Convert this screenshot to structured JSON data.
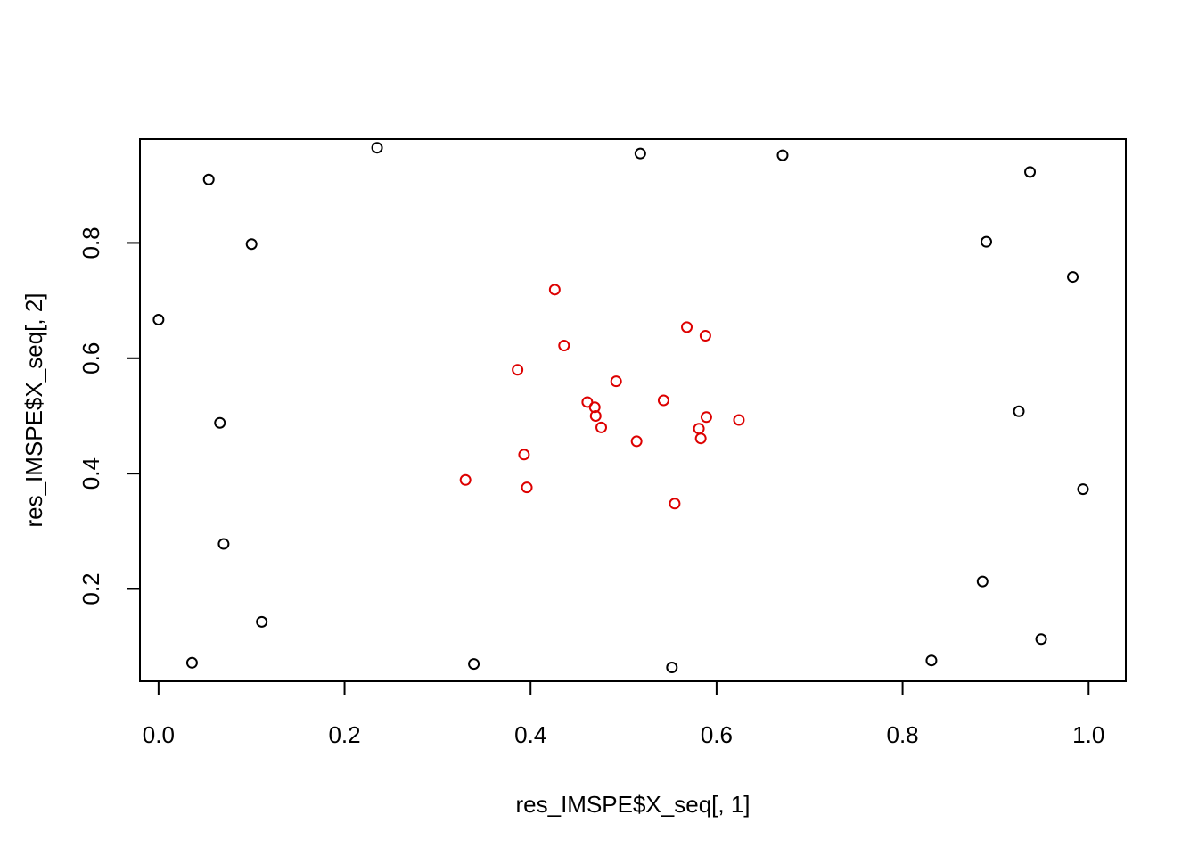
{
  "chart_data": {
    "type": "scatter",
    "title": "",
    "xlabel": "res_IMSPE$X_seq[, 1]",
    "ylabel": "res_IMSPE$X_seq[, 2]",
    "xlim": [
      -0.02,
      1.04
    ],
    "ylim": [
      0.04,
      0.98
    ],
    "xticks": [
      0.0,
      0.2,
      0.4,
      0.6,
      0.8,
      1.0
    ],
    "yticks": [
      0.2,
      0.4,
      0.6,
      0.8
    ],
    "xtick_labels": [
      "0.0",
      "0.2",
      "0.4",
      "0.6",
      "0.8",
      "1.0"
    ],
    "ytick_labels": [
      "0.2",
      "0.4",
      "0.6",
      "0.8"
    ],
    "grid": false,
    "legend": "none",
    "series": [
      {
        "color": "#000000",
        "marker": "open-circle",
        "points": [
          [
            0.235,
            0.965
          ],
          [
            0.518,
            0.955
          ],
          [
            0.671,
            0.952
          ],
          [
            0.054,
            0.91
          ],
          [
            0.937,
            0.923
          ],
          [
            0.1,
            0.798
          ],
          [
            0.89,
            0.802
          ],
          [
            0.983,
            0.741
          ],
          [
            0.0,
            0.667
          ],
          [
            0.066,
            0.488
          ],
          [
            0.925,
            0.508
          ],
          [
            0.994,
            0.373
          ],
          [
            0.07,
            0.278
          ],
          [
            0.886,
            0.213
          ],
          [
            0.111,
            0.143
          ],
          [
            0.949,
            0.113
          ],
          [
            0.036,
            0.072
          ],
          [
            0.339,
            0.07
          ],
          [
            0.552,
            0.064
          ],
          [
            0.831,
            0.076
          ]
        ]
      },
      {
        "color": "#dd0000",
        "marker": "open-circle",
        "points": [
          [
            0.426,
            0.719
          ],
          [
            0.568,
            0.654
          ],
          [
            0.588,
            0.639
          ],
          [
            0.436,
            0.622
          ],
          [
            0.386,
            0.58
          ],
          [
            0.492,
            0.56
          ],
          [
            0.543,
            0.527
          ],
          [
            0.461,
            0.524
          ],
          [
            0.469,
            0.515
          ],
          [
            0.47,
            0.5
          ],
          [
            0.589,
            0.498
          ],
          [
            0.624,
            0.493
          ],
          [
            0.476,
            0.48
          ],
          [
            0.581,
            0.478
          ],
          [
            0.583,
            0.461
          ],
          [
            0.514,
            0.456
          ],
          [
            0.393,
            0.433
          ],
          [
            0.33,
            0.389
          ],
          [
            0.396,
            0.376
          ],
          [
            0.555,
            0.348
          ]
        ]
      }
    ]
  }
}
